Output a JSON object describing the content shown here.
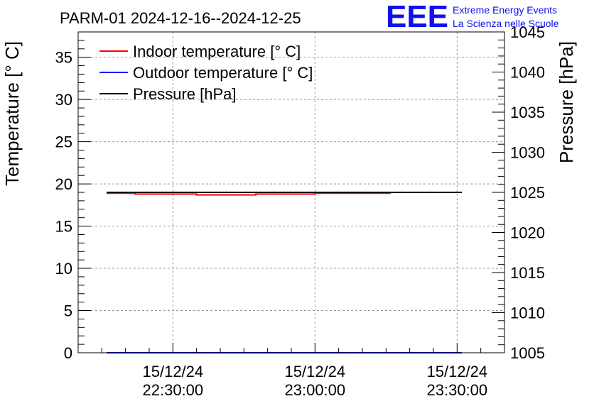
{
  "chart_data": {
    "type": "line",
    "title": "PARM-01 2024-12-16--2024-12-25",
    "ylabel": "Temperature [° C]",
    "y2label": "Pressure [hPa]",
    "ylim": [
      0,
      38
    ],
    "y2lim": [
      1005,
      1045
    ],
    "x_range": [
      "22:10:00",
      "23:40:00"
    ],
    "x_ticks": [
      {
        "time": "22:30:00",
        "date": "15/12/24",
        "minutes": 30
      },
      {
        "time": "23:00:00",
        "date": "15/12/24",
        "minutes": 60
      },
      {
        "time": "23:30:00",
        "date": "15/12/24",
        "minutes": 90
      }
    ],
    "yticks": [
      0,
      5,
      10,
      15,
      20,
      25,
      30,
      35
    ],
    "y2ticks": [
      1005,
      1010,
      1015,
      1020,
      1025,
      1030,
      1035,
      1040,
      1045
    ],
    "grid": true,
    "legend_position": "top-left",
    "series": [
      {
        "name": "Indoor temperature [° C]",
        "color": "#ff0000",
        "axis": "left",
        "points": [
          [
            16,
            18.9
          ],
          [
            22,
            18.9
          ],
          [
            22,
            18.8
          ],
          [
            35,
            18.8
          ],
          [
            35,
            18.7
          ],
          [
            47.5,
            18.7
          ],
          [
            47.5,
            18.8
          ],
          [
            60,
            18.8
          ],
          [
            60,
            18.9
          ],
          [
            76,
            18.9
          ]
        ]
      },
      {
        "name": "Outdoor temperature [° C]",
        "color": "#0000ff",
        "axis": "left",
        "points": [
          [
            16,
            0
          ],
          [
            91,
            0
          ]
        ]
      },
      {
        "name": "Pressure [hPa]",
        "color": "#000000",
        "axis": "right",
        "points": [
          [
            16,
            1025
          ],
          [
            91,
            1025
          ]
        ]
      }
    ]
  },
  "logo": {
    "mark": "EEE",
    "line1": "Extreme Energy Events",
    "line2": "La Scienza nelle Scuole"
  }
}
